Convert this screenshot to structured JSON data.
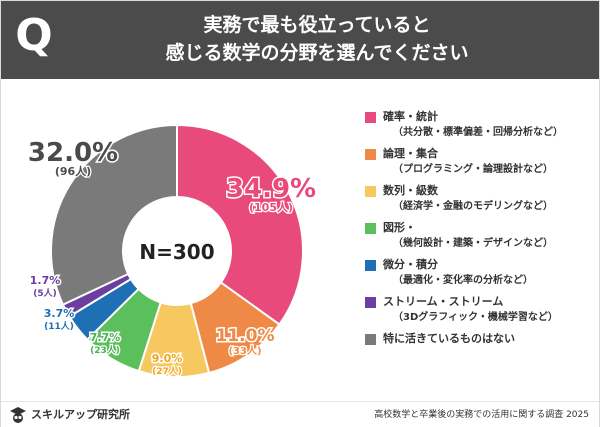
{
  "header": {
    "badge": "Q",
    "title_line1": "実務で最も役立っていると",
    "title_line2": "感じる数学の分野を選んでください"
  },
  "chart_data": {
    "type": "pie",
    "center_label": "N=300",
    "slices": [
      {
        "name": "確率・統計",
        "detail": "（共分散・標準偏差・回帰分析など）",
        "value": 34.9,
        "value_label": "34.9%",
        "count_label": "(105人)",
        "color": "#e84a7c"
      },
      {
        "name": "論理・集合",
        "detail": "（プログラミング・論理設計など）",
        "value": 11.0,
        "value_label": "11.0%",
        "count_label": "(33人)",
        "color": "#ee8a45"
      },
      {
        "name": "数列・級数",
        "detail": "（経済学・金融のモデリングなど）",
        "value": 9.0,
        "value_label": "9.0%",
        "count_label": "(27人)",
        "color": "#f6c85f"
      },
      {
        "name": "図形・",
        "detail": "（幾何設計・建築・デザインなど）",
        "value": 7.7,
        "value_label": "7.7%",
        "count_label": "(23人)",
        "color": "#5bbf5b"
      },
      {
        "name": "微分・積分",
        "detail": "（最適化・変化率の分析など）",
        "value": 3.7,
        "value_label": "3.7%",
        "count_label": "(11人)",
        "color": "#1f6fb5"
      },
      {
        "name": "ストリーム・ストリーム",
        "detail": "（3Dグラフィック・機械学習など）",
        "value": 1.7,
        "value_label": "1.7%",
        "count_label": "(5人)",
        "color": "#6a3fa0"
      },
      {
        "name": "特に活きているものはない",
        "detail": "",
        "value": 32.0,
        "value_label": "32.0%",
        "count_label": "(96人)",
        "color": "#7a7a7a"
      }
    ]
  },
  "footer": {
    "brand": "スキルアップ研究所",
    "source": "高校数学と卒業後の実務での活用に関する調査 2025"
  }
}
